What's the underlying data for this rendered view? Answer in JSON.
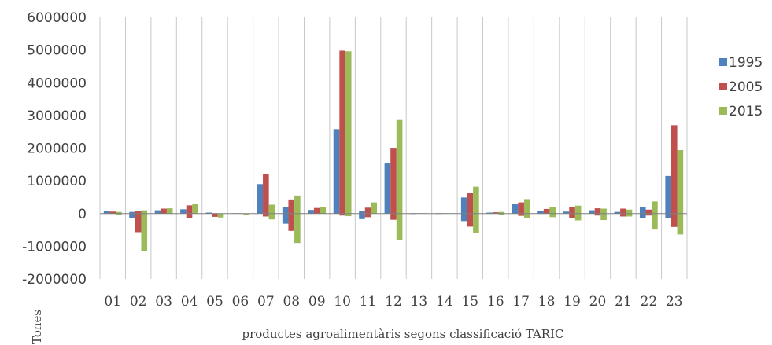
{
  "chart_data": {
    "type": "bar",
    "title": "",
    "xlabel": "productes agroalimentàris segons classificació TARIC",
    "ylabel": "Tones",
    "ylim": [
      -2000000,
      6000000
    ],
    "yticks": [
      6000000,
      5000000,
      4000000,
      3000000,
      2000000,
      1000000,
      0,
      -1000000,
      -2000000
    ],
    "ytick_labels": [
      "6000000",
      "5000000",
      "4000000",
      "3000000",
      "2000000",
      "1000000",
      "0",
      "-1000000",
      "-2000000"
    ],
    "grid": "vertical",
    "legend_position": "right",
    "categories": [
      "01",
      "02",
      "03",
      "04",
      "05",
      "06",
      "07",
      "08",
      "09",
      "10",
      "11",
      "12",
      "13",
      "14",
      "15",
      "16",
      "17",
      "18",
      "19",
      "20",
      "21",
      "22",
      "23"
    ],
    "series": [
      {
        "name": "1995",
        "color": "#4F81BD",
        "values": [
          80000,
          50000,
          100000,
          130000,
          30000,
          10000,
          900000,
          210000,
          110000,
          2580000,
          90000,
          1530000,
          10000,
          10000,
          490000,
          30000,
          300000,
          80000,
          60000,
          100000,
          50000,
          200000,
          1150000
        ],
        "neg_values": [
          0,
          -140000,
          0,
          0,
          0,
          0,
          0,
          -310000,
          0,
          0,
          -170000,
          0,
          -10000,
          -10000,
          -230000,
          0,
          0,
          0,
          0,
          0,
          0,
          -150000,
          -140000
        ]
      },
      {
        "name": "2005",
        "color": "#C0504D",
        "values": [
          60000,
          70000,
          150000,
          250000,
          10000,
          10000,
          1200000,
          430000,
          170000,
          4980000,
          180000,
          2010000,
          10000,
          10000,
          630000,
          40000,
          340000,
          140000,
          200000,
          160000,
          150000,
          120000,
          2700000
        ],
        "neg_values": [
          0,
          -570000,
          0,
          -140000,
          -100000,
          0,
          -90000,
          -530000,
          0,
          -60000,
          -110000,
          -190000,
          0,
          0,
          -400000,
          0,
          -70000,
          0,
          -140000,
          -60000,
          -90000,
          -60000,
          -410000
        ]
      },
      {
        "name": "2015",
        "color": "#9BBB59",
        "values": [
          50000,
          100000,
          160000,
          290000,
          0,
          0,
          270000,
          550000,
          210000,
          4960000,
          340000,
          2860000,
          10000,
          10000,
          820000,
          50000,
          440000,
          200000,
          240000,
          150000,
          120000,
          370000,
          1940000
        ],
        "neg_values": [
          -40000,
          -1150000,
          0,
          0,
          -120000,
          -40000,
          -180000,
          -900000,
          0,
          -80000,
          0,
          -820000,
          0,
          0,
          -600000,
          -30000,
          -130000,
          -110000,
          -210000,
          -200000,
          -90000,
          -490000,
          -640000
        ]
      }
    ]
  }
}
